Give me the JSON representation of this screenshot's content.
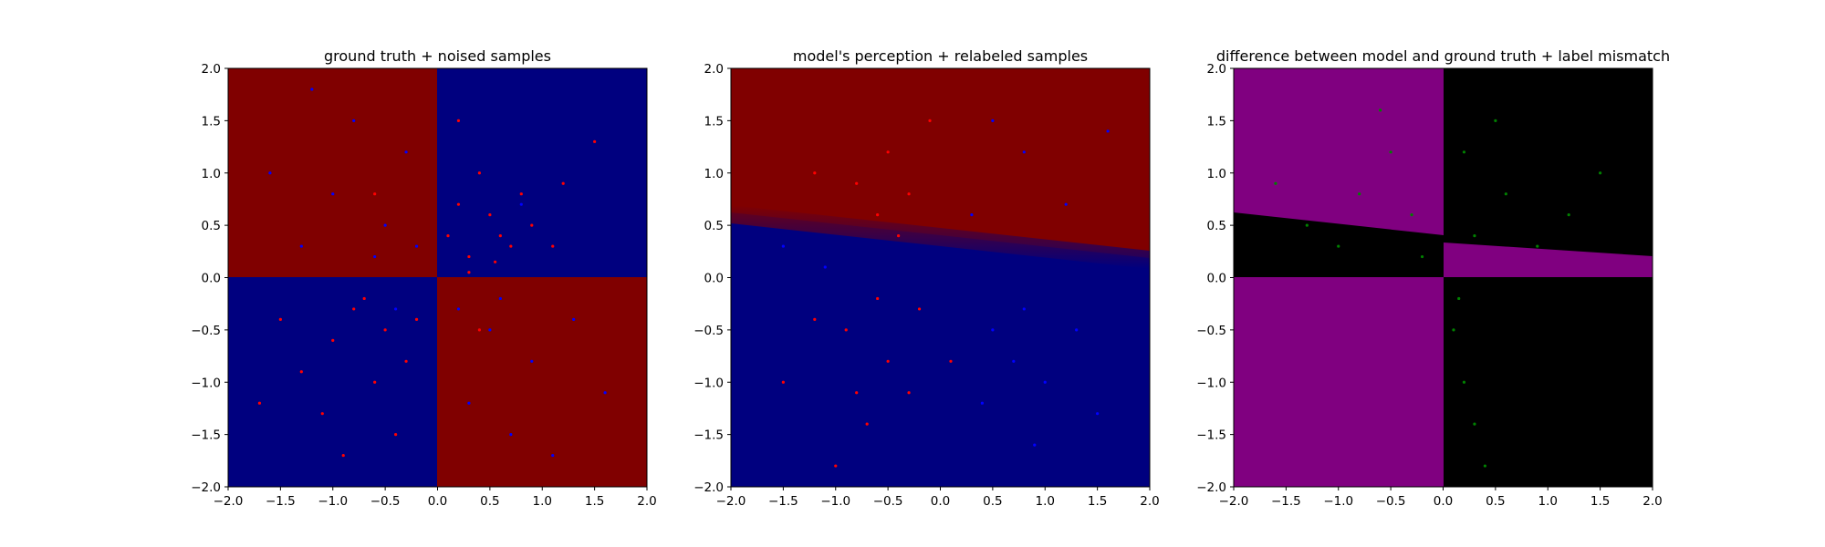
{
  "chart_data": [
    {
      "type": "scatter",
      "title": "ground truth + noised samples",
      "xlim": [
        -2.0,
        2.0
      ],
      "ylim": [
        -2.0,
        2.0
      ],
      "xticks": [
        "−2.0",
        "−1.5",
        "−1.0",
        "−0.5",
        "0.0",
        "0.5",
        "1.0",
        "1.5",
        "2.0"
      ],
      "yticks": [
        "−2.0",
        "−1.5",
        "−1.0",
        "−0.5",
        "0.0",
        "0.5",
        "1.0",
        "1.5",
        "2.0"
      ],
      "background": "ground-truth checkerboard: red where x*y<0, blue where x*y>0",
      "colors": {
        "red_region": "#800000",
        "blue_region": "#00007f",
        "red_points": "#ff0000",
        "blue_points": "#0000ff"
      },
      "series": [
        {
          "color": "#ff0000",
          "points": [
            [
              0.3,
              0.2
            ],
            [
              0.5,
              0.6
            ],
            [
              0.6,
              0.4
            ],
            [
              0.8,
              0.8
            ],
            [
              0.1,
              0.4
            ],
            [
              0.4,
              1.0
            ],
            [
              0.7,
              0.3
            ],
            [
              0.2,
              0.7
            ],
            [
              0.9,
              0.5
            ],
            [
              1.2,
              0.9
            ],
            [
              1.5,
              1.3
            ],
            [
              1.1,
              0.3
            ],
            [
              0.2,
              1.5
            ],
            [
              0.3,
              0.05
            ],
            [
              0.55,
              0.15
            ],
            [
              -0.5,
              -0.5
            ],
            [
              -0.8,
              -0.3
            ],
            [
              -0.3,
              -0.8
            ],
            [
              -1.0,
              -0.6
            ],
            [
              -0.6,
              -1.0
            ],
            [
              -1.3,
              -0.9
            ],
            [
              -0.2,
              -0.4
            ],
            [
              -0.4,
              -1.5
            ],
            [
              -1.5,
              -0.4
            ],
            [
              -1.1,
              -1.3
            ],
            [
              -0.7,
              -0.2
            ],
            [
              -0.9,
              -1.7
            ],
            [
              -1.7,
              -1.2
            ],
            [
              0.4,
              -0.5
            ],
            [
              -0.6,
              0.8
            ]
          ]
        },
        {
          "color": "#0000ff",
          "points": [
            [
              -0.5,
              0.5
            ],
            [
              -1.0,
              0.8
            ],
            [
              -0.3,
              1.2
            ],
            [
              -1.3,
              0.3
            ],
            [
              -0.8,
              1.5
            ],
            [
              -0.2,
              0.3
            ],
            [
              -1.6,
              1.0
            ],
            [
              -0.6,
              0.2
            ],
            [
              0.5,
              -0.5
            ],
            [
              0.9,
              -0.8
            ],
            [
              0.3,
              -1.2
            ],
            [
              1.3,
              -0.4
            ],
            [
              0.7,
              -1.5
            ],
            [
              0.2,
              -0.3
            ],
            [
              1.6,
              -1.1
            ],
            [
              1.1,
              -1.7
            ],
            [
              0.6,
              -0.2
            ],
            [
              -0.4,
              -0.3
            ],
            [
              0.8,
              0.7
            ],
            [
              -1.2,
              1.8
            ]
          ]
        }
      ]
    },
    {
      "type": "scatter",
      "title": "model's perception + relabeled samples",
      "xlim": [
        -2.0,
        2.0
      ],
      "ylim": [
        -2.0,
        2.0
      ],
      "xticks": [
        "−2.0",
        "−1.5",
        "−1.0",
        "−0.5",
        "0.0",
        "0.5",
        "1.0",
        "1.5",
        "2.0"
      ],
      "yticks": [
        "−2.0",
        "−1.5",
        "−1.0",
        "−0.5",
        "0.0",
        "0.5",
        "1.0",
        "1.5",
        "2.0"
      ],
      "background": "model prediction: red above a boundary from (-2,0.55) to (2,0.12), blue below",
      "colors": {
        "red_region": "#800000",
        "blue_region": "#00007f",
        "red_points": "#ff0000",
        "blue_points": "#0000ff"
      },
      "series": [
        {
          "color": "#ff0000",
          "points": [
            [
              -0.5,
              1.2
            ],
            [
              -0.3,
              0.8
            ],
            [
              -0.8,
              0.9
            ],
            [
              -0.1,
              1.5
            ],
            [
              -0.6,
              0.6
            ],
            [
              -1.2,
              1.0
            ],
            [
              -0.4,
              0.4
            ],
            [
              -0.9,
              -0.5
            ],
            [
              -0.5,
              -0.8
            ],
            [
              -1.2,
              -0.4
            ],
            [
              -0.3,
              -1.1
            ],
            [
              -0.7,
              -1.4
            ],
            [
              -1.5,
              -1.0
            ],
            [
              -0.2,
              -0.3
            ],
            [
              0.1,
              -0.8
            ],
            [
              -1.0,
              -1.8
            ],
            [
              -0.6,
              -0.2
            ],
            [
              -0.8,
              -1.1
            ]
          ]
        },
        {
          "color": "#0000ff",
          "points": [
            [
              0.5,
              -0.5
            ],
            [
              0.8,
              -0.3
            ],
            [
              1.0,
              -1.0
            ],
            [
              0.4,
              -1.2
            ],
            [
              1.3,
              -0.5
            ],
            [
              0.7,
              -0.8
            ],
            [
              1.5,
              -1.3
            ],
            [
              0.9,
              -1.6
            ],
            [
              0.3,
              0.6
            ],
            [
              0.8,
              1.2
            ],
            [
              1.2,
              0.7
            ],
            [
              1.6,
              1.4
            ],
            [
              0.5,
              1.5
            ],
            [
              -1.5,
              0.3
            ],
            [
              -1.1,
              0.1
            ]
          ]
        }
      ]
    },
    {
      "type": "scatter",
      "title": "difference between model and ground truth + label mismatch",
      "xlim": [
        -2.0,
        2.0
      ],
      "ylim": [
        -2.0,
        2.0
      ],
      "xticks": [
        "−2.0",
        "−1.5",
        "−1.0",
        "−0.5",
        "0.0",
        "0.5",
        "1.0",
        "1.5",
        "2.0"
      ],
      "yticks": [
        "−2.0",
        "−1.5",
        "−1.0",
        "−0.5",
        "0.0",
        "0.5",
        "1.0",
        "1.5",
        "2.0"
      ],
      "background": "purple where model and ground truth disagree, black where they agree",
      "colors": {
        "mismatch_region": "#800080",
        "match_region": "#000000",
        "points": "#008000"
      },
      "series": [
        {
          "color": "#008000",
          "points": [
            [
              -0.5,
              1.2
            ],
            [
              -0.8,
              0.8
            ],
            [
              -0.3,
              0.6
            ],
            [
              -1.0,
              0.3
            ],
            [
              -0.6,
              1.6
            ],
            [
              -1.3,
              0.5
            ],
            [
              -0.2,
              0.2
            ],
            [
              -1.6,
              0.9
            ],
            [
              0.3,
              0.4
            ],
            [
              0.6,
              0.8
            ],
            [
              0.2,
              1.2
            ],
            [
              0.9,
              0.3
            ],
            [
              1.2,
              0.6
            ],
            [
              0.5,
              1.5
            ],
            [
              1.5,
              1.0
            ],
            [
              0.1,
              -0.5
            ],
            [
              0.2,
              -1.0
            ],
            [
              0.3,
              -1.4
            ],
            [
              0.15,
              -0.2
            ],
            [
              0.4,
              -1.8
            ]
          ]
        }
      ]
    }
  ]
}
